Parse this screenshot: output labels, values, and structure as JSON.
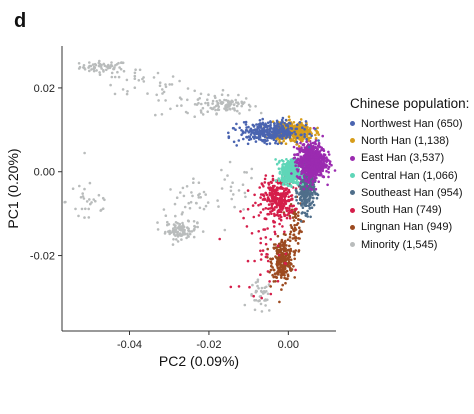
{
  "panel_label": "d",
  "chart_data": {
    "type": "scatter",
    "xlabel": "PC2 (0.09%)",
    "ylabel": "PC1 (0.20%)",
    "xlim": [
      -0.057,
      0.012
    ],
    "ylim": [
      -0.038,
      0.03
    ],
    "x_ticks": [
      -0.04,
      -0.02,
      0.0
    ],
    "x_tick_labels": [
      "-0.04",
      "-0.02",
      "0.00"
    ],
    "y_ticks": [
      -0.02,
      0.0,
      0.02
    ],
    "y_tick_labels": [
      "-0.02",
      "0.00",
      "0.02"
    ],
    "grid": false,
    "legend_title": "Chinese population:",
    "legend_position": "right",
    "series": [
      {
        "name": "Northwest Han (650)",
        "color": "#4a64b0",
        "clusters": [
          {
            "cx": -0.0045,
            "cy": 0.0095,
            "sx": 0.0038,
            "sy": 0.0012,
            "n": 350
          }
        ]
      },
      {
        "name": "North Han (1,138)",
        "color": "#d79d1b",
        "clusters": [
          {
            "cx": 0.0012,
            "cy": 0.0095,
            "sx": 0.0025,
            "sy": 0.0011,
            "n": 450
          }
        ]
      },
      {
        "name": "East Han (3,537)",
        "color": "#9b2bb0",
        "clusters": [
          {
            "cx": 0.0058,
            "cy": 0.0025,
            "sx": 0.0018,
            "sy": 0.0022,
            "n": 700
          }
        ]
      },
      {
        "name": "Central Han (1,066)",
        "color": "#5fd6b8",
        "clusters": [
          {
            "cx": 0.0005,
            "cy": 0.0,
            "sx": 0.0011,
            "sy": 0.0014,
            "n": 450
          }
        ]
      },
      {
        "name": "Southeast Han (954)",
        "color": "#4f6e8a",
        "clusters": [
          {
            "cx": 0.0045,
            "cy": -0.0045,
            "sx": 0.001,
            "sy": 0.0025,
            "n": 300
          }
        ]
      },
      {
        "name": "South Han (749)",
        "color": "#d51e4a",
        "clusters": [
          {
            "cx": -0.0025,
            "cy": -0.0065,
            "sx": 0.002,
            "sy": 0.0025,
            "n": 280
          },
          {
            "cx": -0.006,
            "cy": -0.017,
            "sx": 0.003,
            "sy": 0.006,
            "n": 55
          }
        ]
      },
      {
        "name": "Lingnan Han (949)",
        "color": "#9c4a20",
        "clusters": [
          {
            "cx": -0.0015,
            "cy": -0.021,
            "sx": 0.0013,
            "sy": 0.0025,
            "n": 280
          },
          {
            "cx": 0.0015,
            "cy": -0.013,
            "sx": 0.001,
            "sy": 0.003,
            "n": 60
          }
        ]
      },
      {
        "name": "Minority (1,545)",
        "color": "#b9bcbc",
        "clusters": [
          {
            "cx": -0.0465,
            "cy": 0.025,
            "sx": 0.003,
            "sy": 0.0007,
            "n": 60
          },
          {
            "cx": -0.038,
            "cy": 0.021,
            "sx": 0.006,
            "sy": 0.002,
            "n": 35
          },
          {
            "cx": -0.024,
            "cy": 0.0165,
            "sx": 0.005,
            "sy": 0.002,
            "n": 40
          },
          {
            "cx": -0.015,
            "cy": 0.016,
            "sx": 0.003,
            "sy": 0.001,
            "n": 80
          },
          {
            "cx": -0.027,
            "cy": -0.014,
            "sx": 0.002,
            "sy": 0.001,
            "n": 90
          },
          {
            "cx": -0.025,
            "cy": -0.0075,
            "sx": 0.004,
            "sy": 0.0025,
            "n": 40
          },
          {
            "cx": -0.05,
            "cy": -0.007,
            "sx": 0.003,
            "sy": 0.0035,
            "n": 30
          },
          {
            "cx": -0.014,
            "cy": -0.004,
            "sx": 0.003,
            "sy": 0.003,
            "n": 20
          },
          {
            "cx": -0.007,
            "cy": -0.03,
            "sx": 0.0015,
            "sy": 0.002,
            "n": 40
          }
        ]
      }
    ]
  }
}
